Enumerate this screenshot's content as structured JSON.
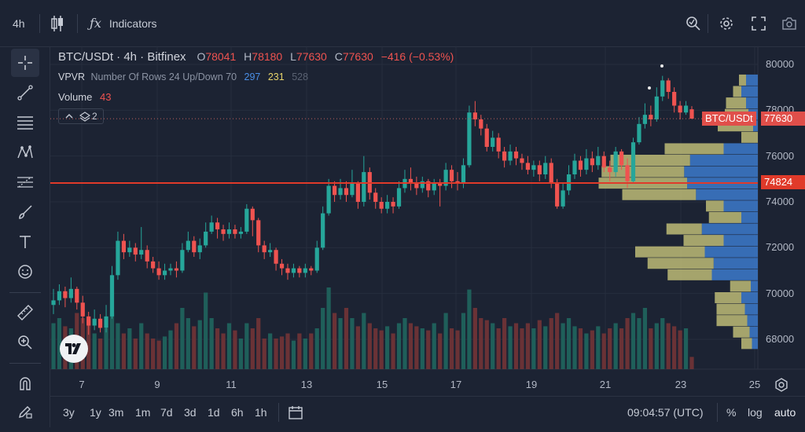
{
  "toolbar": {
    "interval": "4h",
    "indicators_label": "Indicators"
  },
  "legend": {
    "symbol": "BTC/USDt · 4h · Bitfinex",
    "o_label": "O",
    "o_value": "78041",
    "h_label": "H",
    "h_value": "78180",
    "l_label": "L",
    "l_value": "77630",
    "c_label": "C",
    "c_value": "77630",
    "change": "−416 (−0.53%)",
    "vpvr_name": "VPVR",
    "vpvr_params": "Number Of Rows 24 Up/Down 70",
    "vpvr_up": "297",
    "vpvr_down": "231",
    "vpvr_total": "528",
    "volume_name": "Volume",
    "volume_value": "43",
    "collapse_count": "2"
  },
  "price_tags": {
    "symbol_tag": "BTC/USDt",
    "last_price": "77630",
    "line_price": "74824"
  },
  "bottom": {
    "ranges": [
      "3y",
      "1y",
      "3m",
      "1m",
      "7d",
      "3d",
      "1d",
      "6h",
      "1h"
    ],
    "time": "09:04:57 (UTC)",
    "percent": "%",
    "log": "log",
    "auto": "auto"
  },
  "colors": {
    "background": "#1c2333",
    "up": "#26a69a",
    "down": "#ef5350",
    "vp_up": "#3f7fd6",
    "vp_down": "#c8c47a",
    "horizontal_line": "#e03a2a"
  },
  "chart_data": {
    "type": "candlestick",
    "symbol": "BTC/USDt",
    "exchange": "Bitfinex",
    "interval": "4h",
    "y_ticks": [
      80000,
      78000,
      76000,
      74000,
      72000,
      70000,
      68000
    ],
    "ylim": [
      67000,
      80800
    ],
    "x_ticks": [
      "7",
      "9",
      "11",
      "13",
      "15",
      "17",
      "19",
      "21",
      "23",
      "25"
    ],
    "horizontal_line": 74824,
    "last_price": 77630,
    "candles": [
      {
        "o": 69500,
        "c": 69700,
        "h": 70200,
        "l": 69100
      },
      {
        "o": 69700,
        "c": 70100,
        "h": 70400,
        "l": 69500
      },
      {
        "o": 70100,
        "c": 69800,
        "h": 70300,
        "l": 69400
      },
      {
        "o": 69800,
        "c": 70200,
        "h": 70700,
        "l": 69600
      },
      {
        "o": 70200,
        "c": 69600,
        "h": 70300,
        "l": 69300
      },
      {
        "o": 69600,
        "c": 69000,
        "h": 69900,
        "l": 68700
      },
      {
        "o": 69000,
        "c": 68600,
        "h": 69200,
        "l": 68200
      },
      {
        "o": 68600,
        "c": 68900,
        "h": 69300,
        "l": 68400
      },
      {
        "o": 68900,
        "c": 68500,
        "h": 69100,
        "l": 68300
      },
      {
        "o": 68500,
        "c": 69000,
        "h": 69500,
        "l": 68300
      },
      {
        "o": 69000,
        "c": 70800,
        "h": 71200,
        "l": 68900
      },
      {
        "o": 70800,
        "c": 72300,
        "h": 72700,
        "l": 70600
      },
      {
        "o": 72300,
        "c": 71800,
        "h": 72600,
        "l": 71500
      },
      {
        "o": 71800,
        "c": 72000,
        "h": 72300,
        "l": 71600
      },
      {
        "o": 72000,
        "c": 71700,
        "h": 72200,
        "l": 71400
      },
      {
        "o": 71700,
        "c": 71900,
        "h": 72900,
        "l": 71500
      },
      {
        "o": 71900,
        "c": 71400,
        "h": 72100,
        "l": 71100
      },
      {
        "o": 71400,
        "c": 71100,
        "h": 71600,
        "l": 70900
      },
      {
        "o": 71100,
        "c": 70800,
        "h": 71400,
        "l": 70600
      },
      {
        "o": 70800,
        "c": 71000,
        "h": 71300,
        "l": 70600
      },
      {
        "o": 71000,
        "c": 71100,
        "h": 71300,
        "l": 70800
      },
      {
        "o": 71100,
        "c": 71000,
        "h": 71400,
        "l": 70700
      },
      {
        "o": 71000,
        "c": 71900,
        "h": 72200,
        "l": 70900
      },
      {
        "o": 71900,
        "c": 72300,
        "h": 72700,
        "l": 71800
      },
      {
        "o": 72300,
        "c": 71800,
        "h": 72500,
        "l": 71600
      },
      {
        "o": 71800,
        "c": 72100,
        "h": 72400,
        "l": 71500
      },
      {
        "o": 72100,
        "c": 72700,
        "h": 73100,
        "l": 72000
      },
      {
        "o": 72700,
        "c": 73100,
        "h": 73400,
        "l": 72600
      },
      {
        "o": 73100,
        "c": 72800,
        "h": 73300,
        "l": 72400
      },
      {
        "o": 72800,
        "c": 72600,
        "h": 73000,
        "l": 72300
      },
      {
        "o": 72600,
        "c": 72800,
        "h": 73100,
        "l": 72400
      },
      {
        "o": 72800,
        "c": 72600,
        "h": 73000,
        "l": 72400
      },
      {
        "o": 72600,
        "c": 72700,
        "h": 72900,
        "l": 72400
      },
      {
        "o": 72700,
        "c": 73700,
        "h": 73900,
        "l": 72600
      },
      {
        "o": 73700,
        "c": 73200,
        "h": 73800,
        "l": 72500
      },
      {
        "o": 73200,
        "c": 72100,
        "h": 73300,
        "l": 71800
      },
      {
        "o": 72100,
        "c": 71800,
        "h": 72300,
        "l": 71500
      },
      {
        "o": 71800,
        "c": 71900,
        "h": 72200,
        "l": 71600
      },
      {
        "o": 71900,
        "c": 71300,
        "h": 72000,
        "l": 71000
      },
      {
        "o": 71300,
        "c": 71100,
        "h": 71500,
        "l": 70800
      },
      {
        "o": 71100,
        "c": 70900,
        "h": 71300,
        "l": 70600
      },
      {
        "o": 70900,
        "c": 71100,
        "h": 71300,
        "l": 70700
      },
      {
        "o": 71100,
        "c": 70900,
        "h": 71200,
        "l": 70700
      },
      {
        "o": 70900,
        "c": 71100,
        "h": 71300,
        "l": 70700
      },
      {
        "o": 71100,
        "c": 71000,
        "h": 71200,
        "l": 70800
      },
      {
        "o": 71000,
        "c": 72000,
        "h": 72300,
        "l": 70900
      },
      {
        "o": 72000,
        "c": 73500,
        "h": 73800,
        "l": 71900
      },
      {
        "o": 73500,
        "c": 74700,
        "h": 75000,
        "l": 73400
      },
      {
        "o": 74700,
        "c": 74300,
        "h": 74900,
        "l": 74000
      },
      {
        "o": 74300,
        "c": 74600,
        "h": 75000,
        "l": 74100
      },
      {
        "o": 74600,
        "c": 74300,
        "h": 74900,
        "l": 74000
      },
      {
        "o": 74300,
        "c": 74800,
        "h": 75400,
        "l": 74200
      },
      {
        "o": 74800,
        "c": 74000,
        "h": 74900,
        "l": 73700
      },
      {
        "o": 74000,
        "c": 75300,
        "h": 76000,
        "l": 73800
      },
      {
        "o": 75300,
        "c": 74400,
        "h": 75500,
        "l": 74100
      },
      {
        "o": 74400,
        "c": 74000,
        "h": 74600,
        "l": 73700
      },
      {
        "o": 74000,
        "c": 73700,
        "h": 74200,
        "l": 73500
      },
      {
        "o": 73700,
        "c": 74000,
        "h": 74300,
        "l": 73500
      },
      {
        "o": 74000,
        "c": 73800,
        "h": 74200,
        "l": 73500
      },
      {
        "o": 73800,
        "c": 74600,
        "h": 74900,
        "l": 73700
      },
      {
        "o": 74600,
        "c": 75000,
        "h": 75400,
        "l": 74400
      },
      {
        "o": 75000,
        "c": 74800,
        "h": 75500,
        "l": 74500
      },
      {
        "o": 74800,
        "c": 74600,
        "h": 75100,
        "l": 74300
      },
      {
        "o": 74600,
        "c": 74900,
        "h": 75100,
        "l": 74400
      },
      {
        "o": 74900,
        "c": 74500,
        "h": 75000,
        "l": 74200
      },
      {
        "o": 74500,
        "c": 74800,
        "h": 75000,
        "l": 74300
      },
      {
        "o": 74800,
        "c": 74700,
        "h": 75000,
        "l": 73800
      },
      {
        "o": 74700,
        "c": 75400,
        "h": 75700,
        "l": 74500
      },
      {
        "o": 75400,
        "c": 74900,
        "h": 75600,
        "l": 74600
      },
      {
        "o": 74900,
        "c": 74800,
        "h": 75300,
        "l": 74500
      },
      {
        "o": 74800,
        "c": 75600,
        "h": 75900,
        "l": 74600
      },
      {
        "o": 75600,
        "c": 77900,
        "h": 78200,
        "l": 75500
      },
      {
        "o": 77900,
        "c": 77600,
        "h": 78400,
        "l": 77300
      },
      {
        "o": 77600,
        "c": 77200,
        "h": 77800,
        "l": 76900
      },
      {
        "o": 77200,
        "c": 76400,
        "h": 77400,
        "l": 76200
      },
      {
        "o": 76400,
        "c": 76800,
        "h": 77100,
        "l": 76200
      },
      {
        "o": 76800,
        "c": 76200,
        "h": 77000,
        "l": 75900
      },
      {
        "o": 76200,
        "c": 75800,
        "h": 76400,
        "l": 75500
      },
      {
        "o": 75800,
        "c": 76200,
        "h": 76500,
        "l": 75600
      },
      {
        "o": 76200,
        "c": 75900,
        "h": 76400,
        "l": 75600
      },
      {
        "o": 75900,
        "c": 75700,
        "h": 76100,
        "l": 75400
      },
      {
        "o": 75700,
        "c": 75400,
        "h": 76000,
        "l": 75200
      },
      {
        "o": 75400,
        "c": 75600,
        "h": 75800,
        "l": 75100
      },
      {
        "o": 75600,
        "c": 75200,
        "h": 75800,
        "l": 74900
      },
      {
        "o": 75200,
        "c": 75700,
        "h": 76000,
        "l": 75000
      },
      {
        "o": 75700,
        "c": 74800,
        "h": 75900,
        "l": 74600
      },
      {
        "o": 74800,
        "c": 73800,
        "h": 75000,
        "l": 73700
      },
      {
        "o": 73800,
        "c": 74500,
        "h": 74800,
        "l": 73700
      },
      {
        "o": 74500,
        "c": 75200,
        "h": 75600,
        "l": 74300
      },
      {
        "o": 75200,
        "c": 75800,
        "h": 76100,
        "l": 75000
      },
      {
        "o": 75800,
        "c": 75400,
        "h": 76000,
        "l": 75100
      },
      {
        "o": 75400,
        "c": 75900,
        "h": 76300,
        "l": 75200
      },
      {
        "o": 75900,
        "c": 75600,
        "h": 76200,
        "l": 75300
      },
      {
        "o": 75600,
        "c": 76000,
        "h": 76400,
        "l": 75400
      },
      {
        "o": 76000,
        "c": 75500,
        "h": 76200,
        "l": 75300
      },
      {
        "o": 75500,
        "c": 75300,
        "h": 75800,
        "l": 74900
      },
      {
        "o": 75300,
        "c": 76200,
        "h": 76400,
        "l": 75100
      },
      {
        "o": 76200,
        "c": 75600,
        "h": 76300,
        "l": 75400
      },
      {
        "o": 75600,
        "c": 74900,
        "h": 75900,
        "l": 74600
      },
      {
        "o": 74900,
        "c": 76600,
        "h": 76800,
        "l": 74800
      },
      {
        "o": 76600,
        "c": 77400,
        "h": 77700,
        "l": 76500
      },
      {
        "o": 77400,
        "c": 77800,
        "h": 78300,
        "l": 77200
      },
      {
        "o": 77800,
        "c": 77600,
        "h": 78200,
        "l": 77300
      },
      {
        "o": 77600,
        "c": 78600,
        "h": 79000,
        "l": 77500
      },
      {
        "o": 78600,
        "c": 79300,
        "h": 79500,
        "l": 78400
      },
      {
        "o": 79300,
        "c": 78800,
        "h": 79400,
        "l": 78500
      },
      {
        "o": 78800,
        "c": 78200,
        "h": 79000,
        "l": 77900
      },
      {
        "o": 78200,
        "c": 77900,
        "h": 78400,
        "l": 77600
      },
      {
        "o": 77900,
        "c": 78200,
        "h": 78400,
        "l": 77800
      },
      {
        "o": 78041,
        "c": 77630,
        "h": 78180,
        "l": 77630
      }
    ],
    "volumes": [
      0.45,
      0.5,
      0.42,
      0.4,
      0.55,
      0.5,
      0.48,
      0.35,
      0.3,
      0.4,
      0.55,
      0.45,
      0.35,
      0.4,
      0.3,
      0.45,
      0.35,
      0.3,
      0.28,
      0.32,
      0.38,
      0.45,
      0.6,
      0.5,
      0.42,
      0.48,
      0.75,
      0.5,
      0.4,
      0.35,
      0.45,
      0.38,
      0.3,
      0.45,
      0.4,
      0.5,
      0.3,
      0.35,
      0.3,
      0.32,
      0.35,
      0.28,
      0.35,
      0.3,
      0.35,
      0.4,
      0.6,
      0.8,
      0.55,
      0.5,
      0.6,
      0.5,
      0.42,
      0.55,
      0.45,
      0.4,
      0.38,
      0.42,
      0.35,
      0.45,
      0.5,
      0.45,
      0.42,
      0.4,
      0.38,
      0.45,
      0.35,
      0.55,
      0.4,
      0.38,
      0.55,
      0.78,
      0.6,
      0.5,
      0.48,
      0.45,
      0.4,
      0.5,
      0.42,
      0.45,
      0.4,
      0.45,
      0.4,
      0.48,
      0.42,
      0.5,
      0.55,
      0.45,
      0.5,
      0.42,
      0.4,
      0.35,
      0.38,
      0.42,
      0.35,
      0.4,
      0.45,
      0.4,
      0.5,
      0.55,
      0.5,
      0.6,
      0.4,
      0.45,
      0.5,
      0.45,
      0.42,
      0.38,
      0.4,
      0.12
    ],
    "volume_profile": [
      {
        "price": 79300,
        "up": 12,
        "down": 20
      },
      {
        "price": 78800,
        "up": 14,
        "down": 28
      },
      {
        "price": 78300,
        "up": 34,
        "down": 20
      },
      {
        "price": 77800,
        "up": 40,
        "down": 16
      },
      {
        "price": 77300,
        "up": 60,
        "down": 8
      },
      {
        "price": 76800,
        "up": 28,
        "down": 0
      },
      {
        "price": 76300,
        "up": 100,
        "down": 58
      },
      {
        "price": 75800,
        "up": 135,
        "down": 115
      },
      {
        "price": 75300,
        "up": 140,
        "down": 125
      },
      {
        "price": 74800,
        "up": 150,
        "down": 120
      },
      {
        "price": 74300,
        "up": 125,
        "down": 105
      },
      {
        "price": 73800,
        "up": 30,
        "down": 58
      },
      {
        "price": 73300,
        "up": 55,
        "down": 28
      },
      {
        "price": 72800,
        "up": 60,
        "down": 95
      },
      {
        "price": 72300,
        "up": 68,
        "down": 58
      },
      {
        "price": 71800,
        "up": 118,
        "down": 90
      },
      {
        "price": 71300,
        "up": 112,
        "down": 75
      },
      {
        "price": 70800,
        "up": 75,
        "down": 78
      },
      {
        "price": 70300,
        "up": 35,
        "down": 12
      },
      {
        "price": 69800,
        "up": 45,
        "down": 28
      },
      {
        "price": 69300,
        "up": 48,
        "down": 22
      },
      {
        "price": 68800,
        "up": 52,
        "down": 18
      },
      {
        "price": 68300,
        "up": 28,
        "down": 14
      },
      {
        "price": 67800,
        "up": 18,
        "down": 10
      }
    ]
  }
}
